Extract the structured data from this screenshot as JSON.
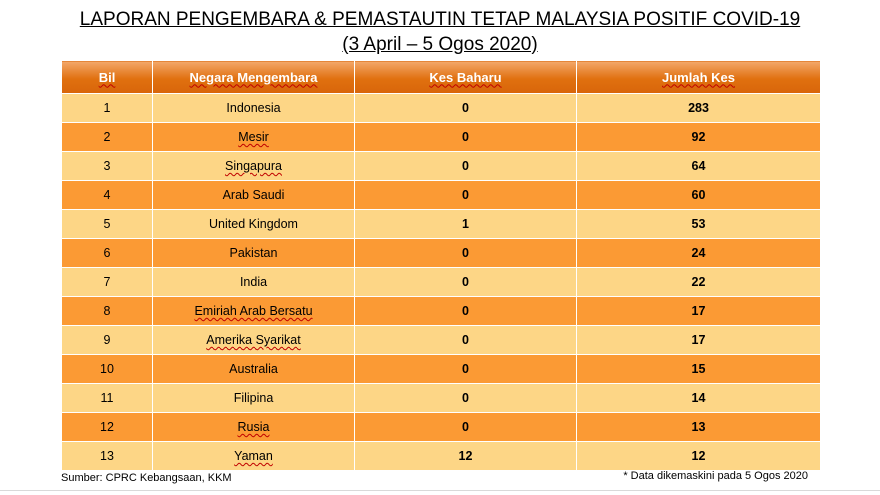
{
  "title_line1": "LAPORAN PENGEMBARA & PEMASTAUTIN TETAP MALAYSIA POSITIF COVID-19",
  "title_line2": "(3 April – 5 Ogos 2020)",
  "columns": [
    "Bil",
    "Negara Mengembara",
    "Kes Baharu",
    "Jumlah Kes"
  ],
  "rows": [
    {
      "bil": "1",
      "negara": "Indonesia",
      "baharu": "0",
      "jumlah": "283"
    },
    {
      "bil": "2",
      "negara": "Mesir",
      "baharu": "0",
      "jumlah": "92"
    },
    {
      "bil": "3",
      "negara": "Singapura",
      "baharu": "0",
      "jumlah": "64"
    },
    {
      "bil": "4",
      "negara": "Arab Saudi",
      "baharu": "0",
      "jumlah": "60"
    },
    {
      "bil": "5",
      "negara": "United Kingdom",
      "baharu": "1",
      "jumlah": "53"
    },
    {
      "bil": "6",
      "negara": "Pakistan",
      "baharu": "0",
      "jumlah": "24"
    },
    {
      "bil": "7",
      "negara": "India",
      "baharu": "0",
      "jumlah": "22"
    },
    {
      "bil": "8",
      "negara": "Emiriah Arab Bersatu",
      "baharu": "0",
      "jumlah": "17"
    },
    {
      "bil": "9",
      "negara": "Amerika Syarikat",
      "baharu": "0",
      "jumlah": "17"
    },
    {
      "bil": "10",
      "negara": "Australia",
      "baharu": "0",
      "jumlah": "15"
    },
    {
      "bil": "11",
      "negara": "Filipina",
      "baharu": "0",
      "jumlah": "14"
    },
    {
      "bil": "12",
      "negara": "Rusia",
      "baharu": "0",
      "jumlah": "13"
    },
    {
      "bil": "13",
      "negara": "Yaman",
      "baharu": "12",
      "jumlah": "12"
    }
  ],
  "source": "Sumber: CPRC Kebangsaan, KKM",
  "note": "* Data dikemaskini pada 5 Ogos 2020",
  "colors": {
    "header": "#e0700f",
    "row_light": "#fdd686",
    "row_dark": "#fb9a34"
  }
}
